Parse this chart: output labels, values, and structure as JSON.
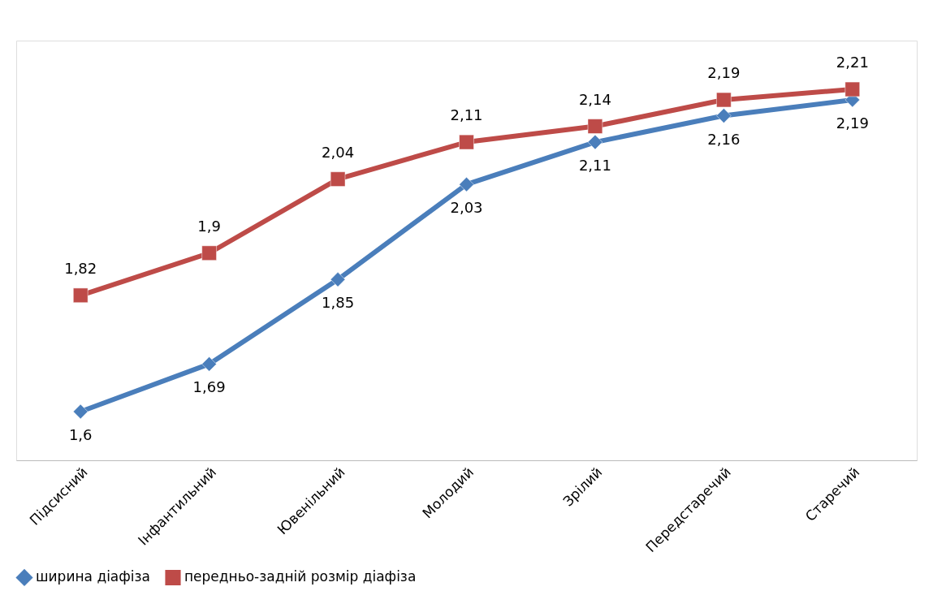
{
  "chart_data": {
    "type": "line",
    "categories": [
      "Підсисний",
      "Інфантильний",
      "Ювенільний",
      "Молодий",
      "Зрілий",
      "Передстаречий",
      "Старечий"
    ],
    "series": [
      {
        "name": "ширина діафіза",
        "color": "#4a7ebb",
        "marker": "diamond",
        "values": [
          1.6,
          1.69,
          1.85,
          2.03,
          2.11,
          2.16,
          2.19
        ],
        "value_labels": [
          "1,6",
          "1,69",
          "1,85",
          "2,03",
          "2,11",
          "2,16",
          "2,19"
        ]
      },
      {
        "name": "передньо-задній розмір діафіза",
        "color": "#be4b48",
        "marker": "square",
        "values": [
          1.82,
          1.9,
          2.04,
          2.11,
          2.14,
          2.19,
          2.21
        ],
        "value_labels": [
          "1,82",
          "1,9",
          "2,04",
          "2,11",
          "2,14",
          "2,19",
          "2,21"
        ]
      }
    ],
    "legend": "bottom",
    "grid": false,
    "tick_labels": "x",
    "line_style": "solid"
  }
}
